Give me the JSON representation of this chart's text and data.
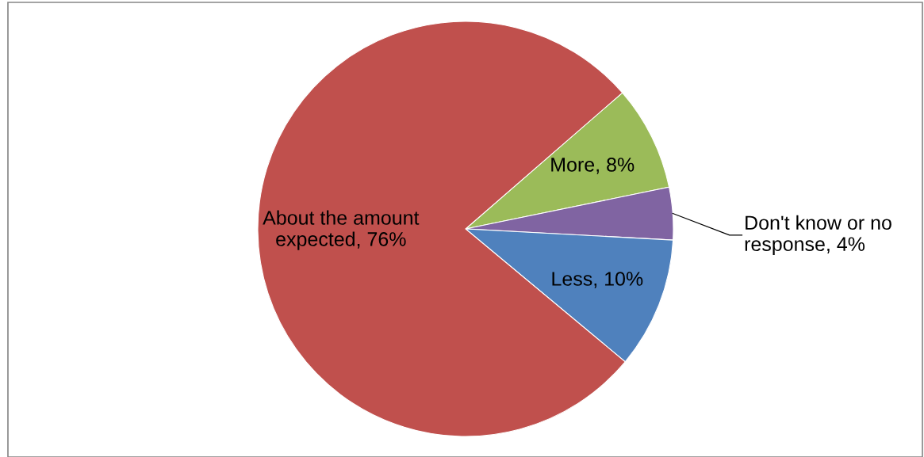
{
  "chart_data": {
    "type": "pie",
    "categories": [
      "More",
      "Don't know or no response",
      "Less",
      "About the amount expected"
    ],
    "values": [
      8,
      4,
      10,
      76
    ],
    "colors": [
      "#9bbb59",
      "#8064a2",
      "#4f81bd",
      "#c0504d"
    ],
    "value_labels": [
      "8%",
      "4%",
      "10%",
      "76%"
    ],
    "legend": false
  }
}
